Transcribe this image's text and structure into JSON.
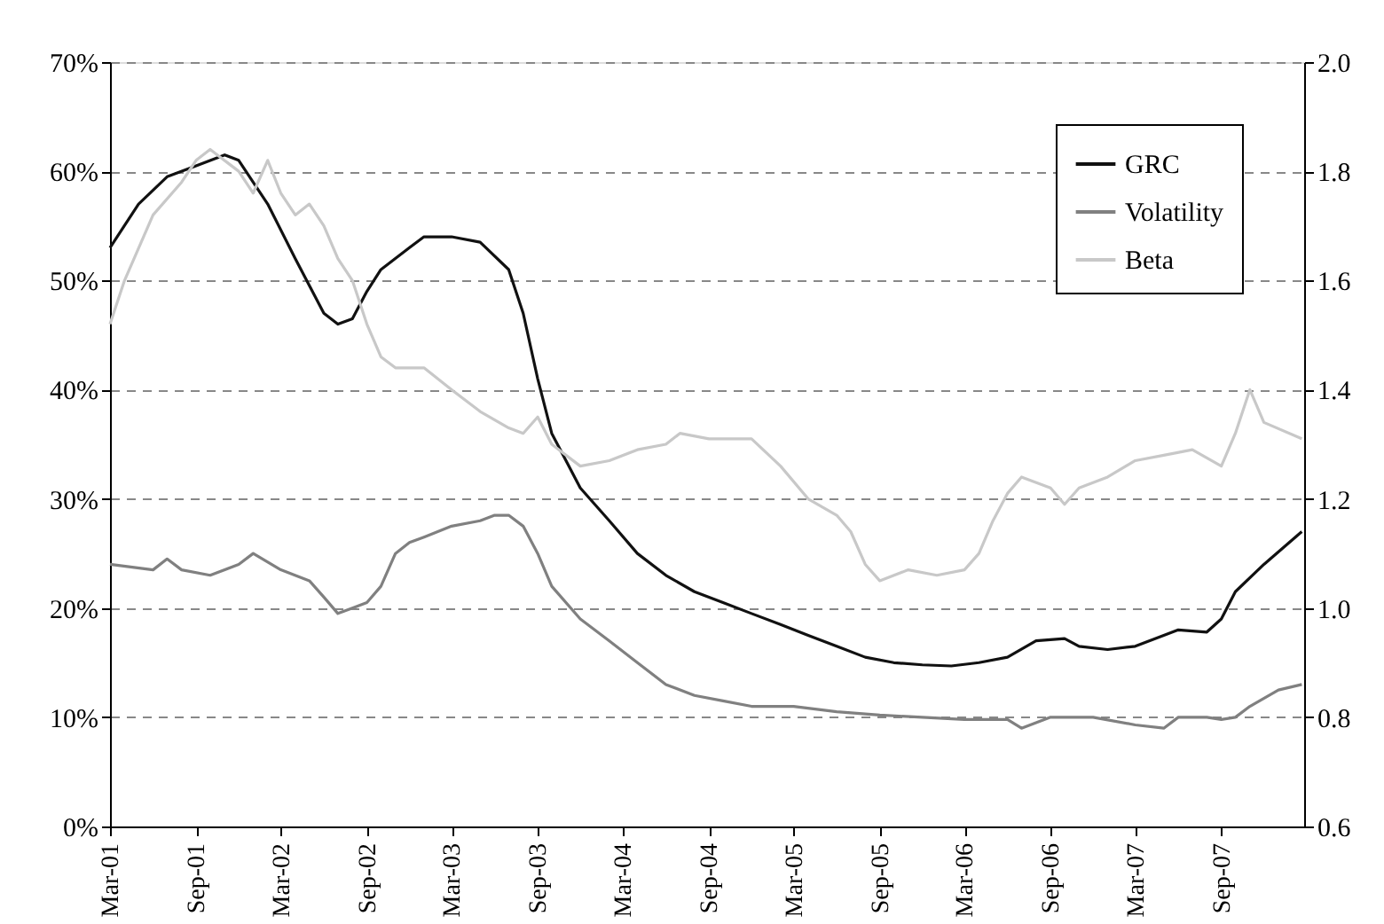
{
  "chart_data": {
    "type": "line",
    "xlim": [
      "2001-03-01",
      "2008-02-25"
    ],
    "xticks": [
      {
        "value": "2001-03-01",
        "label": "Mar-01"
      },
      {
        "value": "2001-09-01",
        "label": "Sep-01"
      },
      {
        "value": "2002-03-01",
        "label": "Mar-02"
      },
      {
        "value": "2002-09-01",
        "label": "Sep-02"
      },
      {
        "value": "2003-03-01",
        "label": "Mar-03"
      },
      {
        "value": "2003-09-01",
        "label": "Sep-03"
      },
      {
        "value": "2004-03-01",
        "label": "Mar-04"
      },
      {
        "value": "2004-09-01",
        "label": "Sep-04"
      },
      {
        "value": "2005-03-01",
        "label": "Mar-05"
      },
      {
        "value": "2005-09-01",
        "label": "Sep-05"
      },
      {
        "value": "2006-03-01",
        "label": "Mar-06"
      },
      {
        "value": "2006-09-01",
        "label": "Sep-06"
      },
      {
        "value": "2007-03-01",
        "label": "Mar-07"
      },
      {
        "value": "2007-09-01",
        "label": "Sep-07"
      }
    ],
    "ylim": [
      0,
      70
    ],
    "yticks": [
      {
        "value": 0,
        "label": "0%"
      },
      {
        "value": 10,
        "label": "10%"
      },
      {
        "value": 20,
        "label": "20%"
      },
      {
        "value": 30,
        "label": "30%"
      },
      {
        "value": 40,
        "label": "40%"
      },
      {
        "value": 50,
        "label": "50%"
      },
      {
        "value": 60,
        "label": "60%"
      },
      {
        "value": 70,
        "label": "70%"
      }
    ],
    "y2lim": [
      0.6,
      2.0
    ],
    "y2ticks": [
      {
        "value": 0.6,
        "label": "0.6"
      },
      {
        "value": 0.8,
        "label": "0.8"
      },
      {
        "value": 1.0,
        "label": "1.0"
      },
      {
        "value": 1.2,
        "label": "1.2"
      },
      {
        "value": 1.4,
        "label": "1.4"
      },
      {
        "value": 1.6,
        "label": "1.6"
      },
      {
        "value": 1.8,
        "label": "1.8"
      },
      {
        "value": 2.0,
        "label": "2.0"
      }
    ],
    "grid": "y",
    "legend": "top right",
    "marker": "none",
    "line_style": "solid",
    "series": [
      {
        "name": "GRC",
        "color": "#111111",
        "x": [
          "2001-03-01",
          "2001-05-01",
          "2001-07-01",
          "2001-09-01",
          "2001-11-01",
          "2001-12-01",
          "2002-02-01",
          "2002-04-01",
          "2002-06-01",
          "2002-07-01",
          "2002-08-01",
          "2002-09-01",
          "2002-10-01",
          "2002-12-01",
          "2003-01-01",
          "2003-03-01",
          "2003-05-01",
          "2003-07-01",
          "2003-08-01",
          "2003-09-01",
          "2003-10-01",
          "2003-12-01",
          "2004-02-01",
          "2004-04-01",
          "2004-06-01",
          "2004-08-01",
          "2004-10-01",
          "2004-12-01",
          "2005-02-01",
          "2005-04-01",
          "2005-06-01",
          "2005-08-01",
          "2005-10-01",
          "2005-12-01",
          "2006-02-01",
          "2006-04-01",
          "2006-06-01",
          "2006-08-01",
          "2006-10-01",
          "2006-11-01",
          "2007-01-01",
          "2007-03-01",
          "2007-05-01",
          "2007-06-01",
          "2007-08-01",
          "2007-09-01",
          "2007-10-01",
          "2007-12-01",
          "2008-02-20"
        ],
        "values": [
          53,
          57,
          59.5,
          60.5,
          61.5,
          61,
          57,
          52,
          47,
          46,
          46.5,
          49,
          51,
          53,
          54,
          54,
          53.5,
          51,
          47,
          41,
          36,
          31,
          28,
          25,
          23,
          21.5,
          20.5,
          19.5,
          18.5,
          17.5,
          16.5,
          15.5,
          15,
          14.8,
          14.7,
          15,
          15.5,
          17,
          17.2,
          16.5,
          16.2,
          16.5,
          17.5,
          18,
          17.8,
          19,
          21.5,
          24,
          27
        ]
      },
      {
        "name": "Volatility",
        "color": "#808080",
        "x": [
          "2001-03-01",
          "2001-06-01",
          "2001-07-01",
          "2001-08-01",
          "2001-10-01",
          "2001-12-01",
          "2002-01-01",
          "2002-03-01",
          "2002-05-01",
          "2002-06-01",
          "2002-07-01",
          "2002-08-01",
          "2002-09-01",
          "2002-10-01",
          "2002-11-01",
          "2002-12-01",
          "2003-01-01",
          "2003-03-01",
          "2003-05-01",
          "2003-06-01",
          "2003-07-01",
          "2003-08-01",
          "2003-09-01",
          "2003-10-01",
          "2003-12-01",
          "2004-02-01",
          "2004-04-01",
          "2004-06-01",
          "2004-08-01",
          "2004-10-01",
          "2004-12-01",
          "2005-03-01",
          "2005-06-01",
          "2005-09-01",
          "2005-12-01",
          "2006-03-01",
          "2006-06-01",
          "2006-07-01",
          "2006-08-01",
          "2006-09-01",
          "2006-12-01",
          "2007-03-01",
          "2007-05-01",
          "2007-06-01",
          "2007-08-01",
          "2007-09-01",
          "2007-10-01",
          "2007-11-01",
          "2008-01-01",
          "2008-02-20"
        ],
        "values": [
          24,
          23.5,
          24.5,
          23.5,
          23,
          24,
          25,
          23.5,
          22.5,
          21,
          19.5,
          20,
          20.5,
          22,
          25,
          26,
          26.5,
          27.5,
          28,
          28.5,
          28.5,
          27.5,
          25,
          22,
          19,
          17,
          15,
          13,
          12,
          11.5,
          11,
          11,
          10.5,
          10.2,
          10,
          9.8,
          9.8,
          9,
          9.5,
          10,
          10,
          9.3,
          9,
          10,
          10,
          9.8,
          10,
          11,
          12.5,
          13
        ]
      },
      {
        "name": "Beta",
        "color": "#c8c8c8",
        "axis": "y2",
        "x": [
          "2001-03-01",
          "2001-04-01",
          "2001-06-01",
          "2001-08-01",
          "2001-09-01",
          "2001-10-01",
          "2001-12-01",
          "2002-01-01",
          "2002-02-01",
          "2002-03-01",
          "2002-04-01",
          "2002-05-01",
          "2002-06-01",
          "2002-07-01",
          "2002-08-01",
          "2002-09-01",
          "2002-10-01",
          "2002-11-01",
          "2003-01-01",
          "2003-03-01",
          "2003-05-01",
          "2003-07-01",
          "2003-08-01",
          "2003-09-01",
          "2003-10-01",
          "2003-12-01",
          "2004-02-01",
          "2004-04-01",
          "2004-06-01",
          "2004-07-01",
          "2004-09-01",
          "2004-12-01",
          "2005-02-01",
          "2005-04-01",
          "2005-06-01",
          "2005-07-01",
          "2005-08-01",
          "2005-09-01",
          "2005-11-01",
          "2006-01-01",
          "2006-03-01",
          "2006-04-01",
          "2006-05-01",
          "2006-06-01",
          "2006-07-01",
          "2006-09-01",
          "2006-10-01",
          "2006-11-01",
          "2007-01-01",
          "2007-03-01",
          "2007-05-01",
          "2007-07-01",
          "2007-09-01",
          "2007-10-01",
          "2007-11-01",
          "2007-12-01",
          "2008-02-20"
        ],
        "values": [
          1.52,
          1.6,
          1.72,
          1.78,
          1.82,
          1.84,
          1.8,
          1.76,
          1.82,
          1.76,
          1.72,
          1.74,
          1.7,
          1.64,
          1.6,
          1.52,
          1.46,
          1.44,
          1.44,
          1.4,
          1.36,
          1.33,
          1.32,
          1.35,
          1.3,
          1.26,
          1.27,
          1.29,
          1.3,
          1.32,
          1.31,
          1.31,
          1.26,
          1.2,
          1.17,
          1.14,
          1.08,
          1.05,
          1.07,
          1.06,
          1.07,
          1.1,
          1.16,
          1.21,
          1.24,
          1.22,
          1.19,
          1.22,
          1.24,
          1.27,
          1.28,
          1.29,
          1.26,
          1.32,
          1.4,
          1.34,
          1.31
        ]
      }
    ]
  }
}
